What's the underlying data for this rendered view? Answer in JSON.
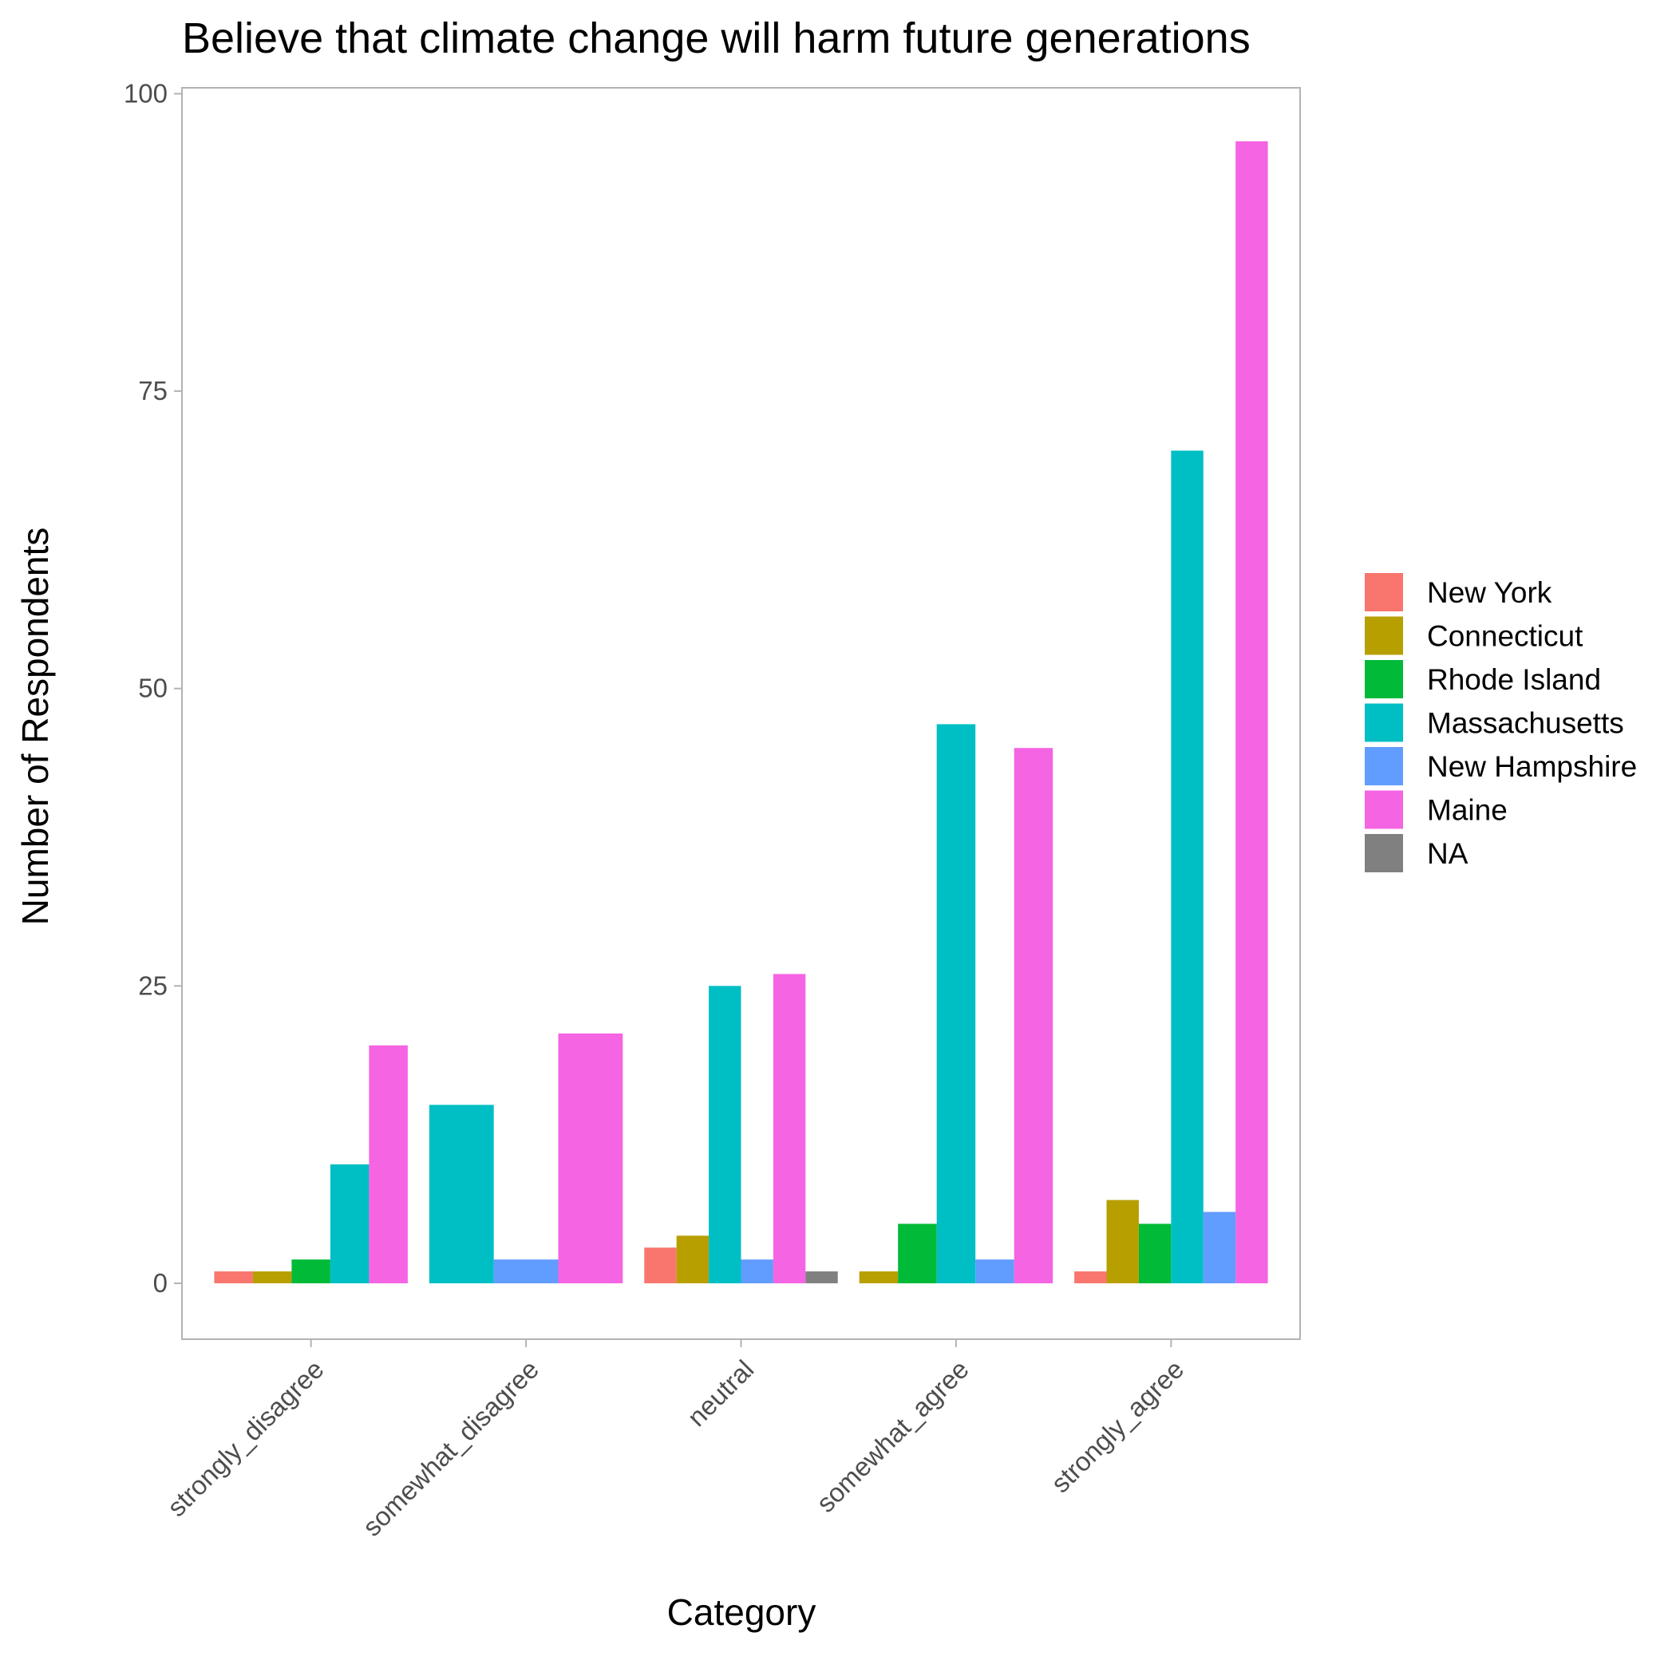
{
  "chart_data": {
    "type": "bar",
    "title": "Believe that climate change will harm future generations",
    "xlabel": "Category",
    "ylabel": "Number of Respondents",
    "categories": [
      "strongly_disagree",
      "somewhat_disagree",
      "neutral",
      "somewhat_agree",
      "strongly_agree"
    ],
    "ylim": [
      -4.7,
      100.5
    ],
    "yticks": [
      0,
      25,
      50,
      75,
      100
    ],
    "grid": false,
    "legend_position": "right",
    "series": [
      {
        "name": "New York",
        "color": "#F8766D",
        "values": [
          1,
          null,
          3,
          null,
          1
        ]
      },
      {
        "name": "Connecticut",
        "color": "#B79F00",
        "values": [
          1,
          null,
          4,
          1,
          7
        ]
      },
      {
        "name": "Rhode Island",
        "color": "#00BA38",
        "values": [
          2,
          null,
          null,
          5,
          5
        ]
      },
      {
        "name": "Massachusetts",
        "color": "#00BFC4",
        "values": [
          10,
          15,
          25,
          47,
          70
        ]
      },
      {
        "name": "New Hampshire",
        "color": "#619CFF",
        "values": [
          null,
          2,
          2,
          2,
          6
        ]
      },
      {
        "name": "Maine",
        "color": "#F564E3",
        "values": [
          20,
          21,
          26,
          45,
          96
        ]
      },
      {
        "name": "NA",
        "color": "#808080",
        "values": [
          null,
          null,
          1,
          null,
          null
        ]
      }
    ]
  }
}
